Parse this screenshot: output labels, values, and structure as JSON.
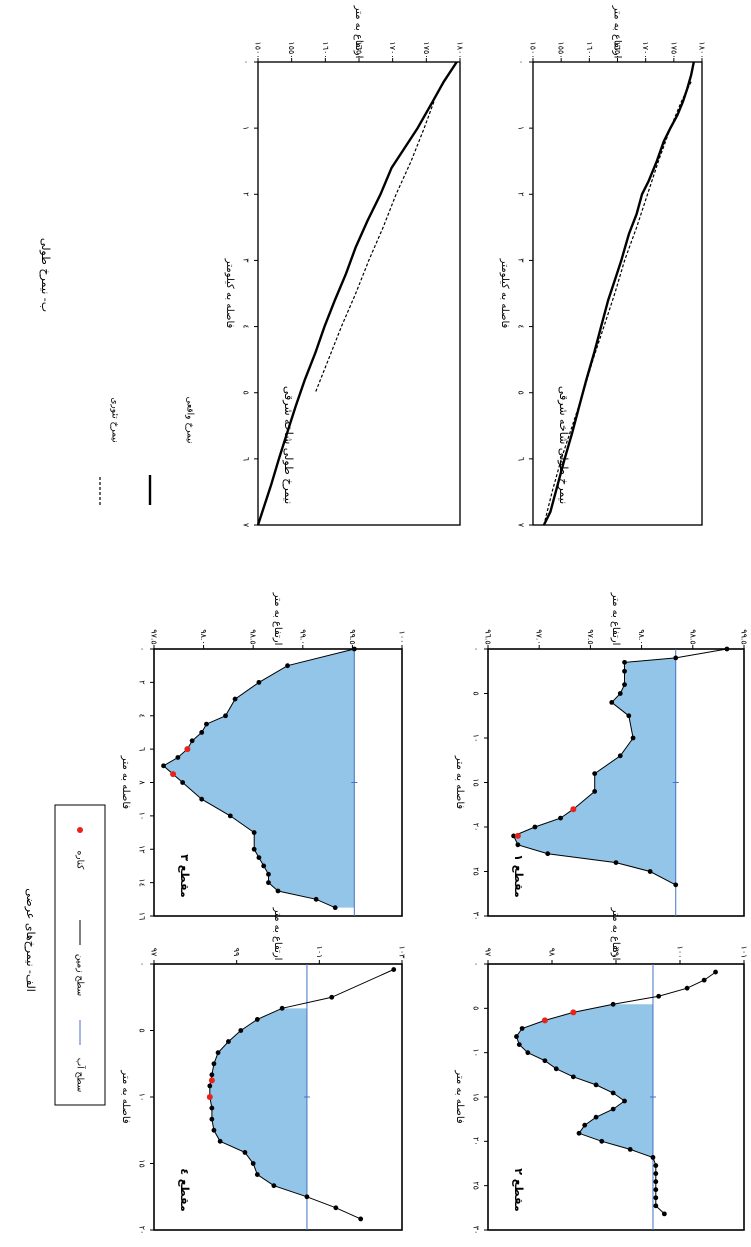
{
  "chart_data": [
    {
      "id": "long-profile-upper",
      "type": "line",
      "title": "نیمرخ طولی شاخه شرقی",
      "xlabel": "فاصله به کیلومتر",
      "ylabel": "ارتفاع به متر",
      "xticks": [
        "٠",
        "١",
        "٢",
        "٣",
        "٤",
        "٥",
        "٦",
        "٧"
      ],
      "yticks": [
        "١٨٠٠",
        "١٧٥٠",
        "١٧٠٠",
        "١٦٥٠",
        "١٦٠٠",
        "١٥٥٠",
        "١٥٠٠"
      ],
      "xlim": [
        0,
        7
      ],
      "ylim": [
        1500,
        1810
      ],
      "series": [
        {
          "key": "actual",
          "x": [
            0,
            0.2,
            0.4,
            0.6,
            0.8,
            1,
            1.2,
            1.5,
            1.8,
            2,
            2.3,
            2.6,
            3,
            3.3,
            3.6,
            4,
            4.4,
            4.8,
            5.2,
            5.6,
            6,
            6.4,
            6.8,
            7
          ],
          "y": [
            1795,
            1790,
            1783,
            1775,
            1765,
            1752,
            1740,
            1727,
            1712,
            1700,
            1690,
            1676,
            1662,
            1650,
            1638,
            1625,
            1612,
            1598,
            1585,
            1572,
            1558,
            1545,
            1532,
            1520
          ]
        },
        {
          "key": "theory",
          "x": [
            0.3,
            0.6,
            1,
            1.5,
            2,
            2.5,
            3,
            3.5,
            4,
            4.5,
            5,
            5.5,
            6,
            6.5,
            7
          ],
          "y": [
            1790,
            1772,
            1752,
            1730,
            1710,
            1690,
            1668,
            1650,
            1630,
            1610,
            1592,
            1572,
            1552,
            1535,
            1520
          ]
        }
      ]
    },
    {
      "id": "long-profile-lower",
      "type": "line",
      "title": "نیمرخ طولی شاخه شرقی",
      "xlabel": "فاصله به کیلومتر",
      "ylabel": "ارتفاع به متر",
      "xticks": [
        "٠",
        "١",
        "٢",
        "٣",
        "٤",
        "٥",
        "٦",
        "٧"
      ],
      "yticks": [
        "١٨٠٠",
        "١٧٥٠",
        "١٧٠٠",
        "١٦٥٠",
        "١٦٠٠",
        "١٥٥٠",
        "١٥٠٠"
      ],
      "xlim": [
        0,
        7
      ],
      "ylim": [
        1500,
        1810
      ],
      "series": [
        {
          "key": "actual",
          "x": [
            0,
            0.3,
            0.6,
            1,
            1.3,
            1.6,
            2,
            2.4,
            2.8,
            3.2,
            3.6,
            4,
            4.4,
            4.8,
            5.2,
            5.6,
            6,
            6.4,
            7
          ],
          "y": [
            1805,
            1785,
            1768,
            1745,
            1725,
            1705,
            1688,
            1668,
            1650,
            1635,
            1618,
            1602,
            1588,
            1572,
            1558,
            1545,
            1532,
            1520,
            1500
          ]
        },
        {
          "key": "theory",
          "x": [
            0.6,
            1,
            1.5,
            2,
            2.5,
            3,
            3.5,
            4,
            4.5,
            5
          ],
          "y": [
            1770,
            1755,
            1735,
            1712,
            1692,
            1670,
            1650,
            1628,
            1608,
            1588
          ]
        }
      ]
    },
    {
      "id": "cross-section-1",
      "type": "area",
      "title": "مقطع ١",
      "xlabel": "فاصله به متر",
      "ylabel": "ارتفاع به متر",
      "xticks": [
        "٠",
        "٥",
        "١٠",
        "١٥",
        "٢٠",
        "٢٥",
        "٣٠"
      ],
      "yticks": [
        "٩٩.٥",
        "٩٨.٥",
        "٩٨.٠",
        "٩٧.٥",
        "٩٧.٠",
        "٩٦.٥"
      ],
      "xlim": [
        0,
        30
      ],
      "ylim": [
        96.5,
        99.5
      ],
      "water_level": 98.7,
      "ground": {
        "x": [
          0,
          1,
          1.5,
          2.5,
          4,
          5,
          6,
          7.5,
          10,
          12,
          14,
          16,
          18,
          19,
          20,
          21,
          22,
          23,
          24,
          25,
          26.5
        ],
        "y": [
          99.3,
          98.7,
          98.1,
          98.1,
          98.1,
          98.05,
          97.95,
          98.15,
          98.2,
          98.05,
          97.75,
          97.75,
          97.5,
          97.35,
          97.05,
          96.8,
          96.85,
          97.2,
          98.0,
          98.4,
          98.7
        ]
      },
      "scour_points": {
        "x": [
          18,
          21
        ],
        "y": [
          97.5,
          96.85
        ]
      }
    },
    {
      "id": "cross-section-2",
      "type": "area",
      "title": "مقطع ٢",
      "xlabel": "فاصله به متر",
      "ylabel": "ارتفاع به متر",
      "xticks": [
        "٠",
        "٥",
        "١٠",
        "١٥",
        "٢٠",
        "٢٥",
        "٣٠"
      ],
      "yticks": [
        "١٠١",
        "١٠٠",
        "٩٩",
        "٩٨",
        "٩٧"
      ],
      "xlim": [
        -3,
        30
      ],
      "ylim": [
        97,
        101.5
      ],
      "water_level": 99.9,
      "ground": {
        "x": [
          -2,
          -1,
          0,
          1,
          2,
          3,
          4,
          5,
          6,
          7,
          8,
          9,
          10,
          11,
          12,
          13,
          14,
          15,
          16,
          17,
          18,
          19,
          20,
          21,
          22,
          23,
          24,
          25,
          26,
          27,
          28
        ],
        "y": [
          101,
          100.8,
          100.5,
          100,
          99.2,
          98.5,
          98.0,
          97.6,
          97.5,
          97.55,
          97.7,
          98.0,
          98.2,
          98.5,
          98.9,
          99.2,
          99.4,
          99.2,
          98.9,
          98.7,
          98.6,
          99.0,
          99.5,
          99.9,
          99.95,
          99.95,
          99.95,
          99.95,
          99.95,
          99.95,
          100.1
        ]
      },
      "scour_points": {
        "x": [
          3,
          4
        ],
        "y": [
          98.5,
          98.0
        ]
      }
    },
    {
      "id": "cross-section-3",
      "type": "area",
      "title": "مقطع ٣",
      "xlabel": "فاصله به متر",
      "ylabel": "ارتفاع به متر",
      "xticks": [
        "٠",
        "٢",
        "٤",
        "٦",
        "٨",
        "١٠",
        "١٢",
        "١٤",
        "١٦"
      ],
      "yticks": [
        "١٠٠",
        "٩٩.٥",
        "٩٩.٠",
        "٩٨.٥",
        "٩٨.٠",
        "٩٧.٥"
      ],
      "xlim": [
        0,
        16
      ],
      "ylim": [
        97.5,
        100.1
      ],
      "water_level": 99.6,
      "ground": {
        "x": [
          0,
          1,
          2,
          3,
          4,
          4.5,
          5,
          5.5,
          6,
          6.5,
          7,
          7.5,
          8,
          9,
          10,
          11,
          12,
          12.5,
          13,
          13.5,
          14,
          14.5,
          15,
          15.5
        ],
        "y": [
          99.6,
          98.9,
          98.6,
          98.35,
          98.25,
          98.05,
          98.0,
          97.9,
          97.85,
          97.75,
          97.6,
          97.7,
          97.8,
          98.0,
          98.3,
          98.55,
          98.55,
          98.6,
          98.65,
          98.7,
          98.7,
          98.8,
          99.2,
          99.4
        ]
      },
      "scour_points": {
        "x": [
          6,
          7.5
        ],
        "y": [
          97.85,
          97.7
        ]
      }
    },
    {
      "id": "cross-section-4",
      "type": "area",
      "title": "مقطع ٤",
      "xlabel": "فاصله به متر",
      "ylabel": "ارتفاع به متر",
      "xticks": [
        "٠",
        "٥",
        "١٠",
        "١٥",
        "٢٠"
      ],
      "yticks": [
        "١٠٣",
        "١٠١",
        "٩٩",
        "٩٧"
      ],
      "xlim": [
        -3,
        21
      ],
      "ylim": [
        97,
        103
      ],
      "water_level": 100.7,
      "ground": {
        "x": [
          -2.5,
          0,
          1,
          2,
          3,
          4,
          5,
          6,
          7,
          8,
          9,
          10,
          11,
          12,
          13,
          14,
          15,
          16,
          17,
          18,
          19,
          20
        ],
        "y": [
          102.8,
          101.3,
          100.1,
          99.5,
          99.1,
          98.8,
          98.55,
          98.45,
          98.4,
          98.35,
          98.35,
          98.4,
          98.4,
          98.45,
          98.6,
          99.2,
          99.4,
          99.5,
          99.9,
          100.7,
          101.4,
          102.0
        ]
      },
      "scour_points": {
        "x": [
          7.5,
          9
        ],
        "y": [
          98.4,
          98.35
        ]
      }
    }
  ],
  "legends": {
    "cross_sections": {
      "water": "سطح آب",
      "ground": "سطح زمین",
      "scour": "کناره"
    },
    "long_profiles": {
      "actual": "نیمرخ واقعی",
      "theory": "نیمرخ تئوری"
    }
  },
  "captions": {
    "cross_sections": "الف- نیمرخ‌های عرضی",
    "long_profiles": "ب- نیمرخ طولی"
  },
  "colors": {
    "water_fill": "#92c5e7",
    "water_line": "#4472c4",
    "ground_line": "#000000",
    "scour_point": "#e8231c"
  }
}
